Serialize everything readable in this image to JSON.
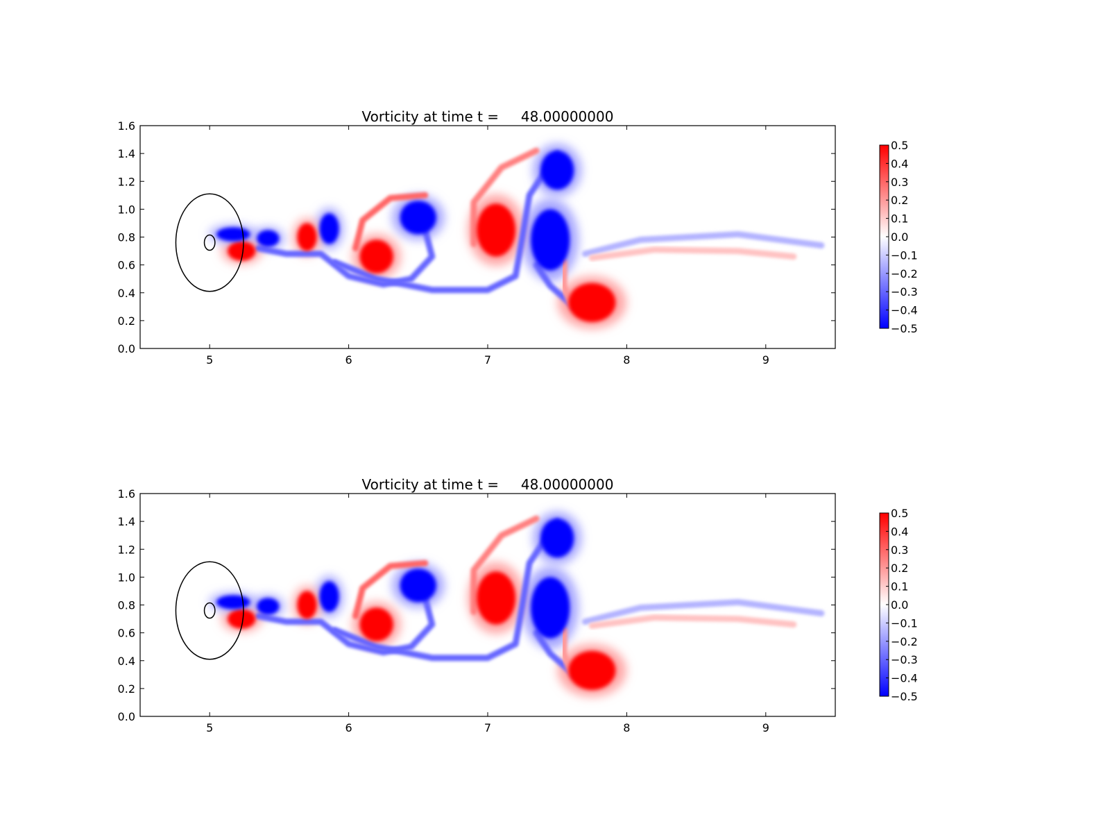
{
  "colors": {
    "positive": "#ff0000",
    "negative": "#0000ff",
    "zero": "#ffffff"
  },
  "chart_data": [
    {
      "type": "heatmap",
      "title": "Vorticity at time t =     48.00000000",
      "xlim": [
        4.5,
        9.5
      ],
      "ylim": [
        0.0,
        1.6
      ],
      "xticks": [
        "5",
        "6",
        "7",
        "8",
        "9"
      ],
      "yticks": [
        "0.0",
        "0.2",
        "0.4",
        "0.6",
        "0.8",
        "1.0",
        "1.2",
        "1.4",
        "1.6"
      ],
      "colormap": "bwr",
      "clim": [
        -0.5,
        0.5
      ],
      "colorbar_ticks": [
        "0.5",
        "0.4",
        "0.3",
        "0.2",
        "0.1",
        "0.0",
        "−0.1",
        "−0.2",
        "−0.3",
        "−0.4",
        "−0.5"
      ],
      "circles": [
        {
          "cx": 5.0,
          "cy": 0.76,
          "r": 0.35
        },
        {
          "cx": 5.0,
          "cy": 0.76,
          "r": 0.055
        }
      ],
      "vortices": [
        {
          "x": 7.5,
          "y": 1.28,
          "rx": 0.12,
          "ry": 0.14,
          "sign": -1,
          "value": -0.5
        },
        {
          "x": 7.45,
          "y": 0.78,
          "rx": 0.14,
          "ry": 0.22,
          "sign": -1,
          "value": -0.5
        },
        {
          "x": 7.75,
          "y": 0.33,
          "rx": 0.17,
          "ry": 0.14,
          "sign": 1,
          "value": 0.5
        },
        {
          "x": 7.06,
          "y": 0.85,
          "rx": 0.14,
          "ry": 0.19,
          "sign": 1,
          "value": 0.5
        },
        {
          "x": 6.5,
          "y": 0.94,
          "rx": 0.13,
          "ry": 0.12,
          "sign": -1,
          "value": -0.5
        },
        {
          "x": 6.2,
          "y": 0.66,
          "rx": 0.12,
          "ry": 0.12,
          "sign": 1,
          "value": 0.5
        },
        {
          "x": 5.86,
          "y": 0.86,
          "rx": 0.07,
          "ry": 0.11,
          "sign": -1,
          "value": -0.5
        },
        {
          "x": 5.7,
          "y": 0.8,
          "rx": 0.07,
          "ry": 0.1,
          "sign": 1,
          "value": 0.5
        },
        {
          "x": 5.42,
          "y": 0.79,
          "rx": 0.08,
          "ry": 0.06,
          "sign": -1,
          "value": -0.5
        },
        {
          "x": 5.23,
          "y": 0.7,
          "rx": 0.1,
          "ry": 0.07,
          "sign": 1,
          "value": 0.5
        },
        {
          "x": 5.17,
          "y": 0.82,
          "rx": 0.12,
          "ry": 0.05,
          "sign": -1,
          "value": -0.5
        }
      ],
      "filaments": [
        {
          "sign": -1,
          "value": -0.3,
          "points": [
            [
              5.35,
              0.72
            ],
            [
              5.55,
              0.68
            ],
            [
              5.8,
              0.68
            ],
            [
              6.0,
              0.52
            ],
            [
              6.25,
              0.46
            ],
            [
              6.45,
              0.5
            ],
            [
              6.6,
              0.66
            ],
            [
              6.55,
              0.85
            ]
          ]
        },
        {
          "sign": -1,
          "value": -0.3,
          "points": [
            [
              5.9,
              0.62
            ],
            [
              6.2,
              0.5
            ],
            [
              6.6,
              0.42
            ],
            [
              7.0,
              0.42
            ],
            [
              7.2,
              0.52
            ],
            [
              7.25,
              0.8
            ],
            [
              7.3,
              1.1
            ],
            [
              7.5,
              1.4
            ]
          ]
        },
        {
          "sign": 1,
          "value": 0.3,
          "points": [
            [
              6.05,
              0.72
            ],
            [
              6.1,
              0.92
            ],
            [
              6.3,
              1.08
            ],
            [
              6.55,
              1.1
            ]
          ]
        },
        {
          "sign": 1,
          "value": 0.25,
          "points": [
            [
              6.9,
              0.75
            ],
            [
              6.9,
              1.05
            ],
            [
              7.1,
              1.3
            ],
            [
              7.35,
              1.42
            ]
          ]
        },
        {
          "sign": -1,
          "value": -0.15,
          "points": [
            [
              7.7,
              0.68
            ],
            [
              8.1,
              0.78
            ],
            [
              8.8,
              0.82
            ],
            [
              9.4,
              0.74
            ]
          ]
        },
        {
          "sign": 1,
          "value": 0.12,
          "points": [
            [
              7.75,
              0.65
            ],
            [
              8.2,
              0.71
            ],
            [
              8.8,
              0.7
            ],
            [
              9.2,
              0.66
            ]
          ]
        },
        {
          "sign": -1,
          "value": -0.3,
          "points": [
            [
              7.35,
              0.6
            ],
            [
              7.45,
              0.45
            ],
            [
              7.62,
              0.3
            ]
          ]
        },
        {
          "sign": 1,
          "value": 0.2,
          "points": [
            [
              7.55,
              0.62
            ],
            [
              7.55,
              0.45
            ],
            [
              7.6,
              0.3
            ]
          ]
        }
      ]
    },
    {
      "type": "heatmap",
      "title": "Vorticity at time t =     48.00000000",
      "xlim": [
        4.5,
        9.5
      ],
      "ylim": [
        0.0,
        1.6
      ],
      "xticks": [
        "5",
        "6",
        "7",
        "8",
        "9"
      ],
      "yticks": [
        "0.0",
        "0.2",
        "0.4",
        "0.6",
        "0.8",
        "1.0",
        "1.2",
        "1.4",
        "1.6"
      ],
      "colormap": "bwr",
      "clim": [
        -0.5,
        0.5
      ],
      "colorbar_ticks": [
        "0.5",
        "0.4",
        "0.3",
        "0.2",
        "0.1",
        "0.0",
        "−0.1",
        "−0.2",
        "−0.3",
        "−0.4",
        "−0.5"
      ],
      "circles": [
        {
          "cx": 5.0,
          "cy": 0.76,
          "r": 0.35
        },
        {
          "cx": 5.0,
          "cy": 0.76,
          "r": 0.055
        }
      ],
      "vortices": [
        {
          "x": 7.5,
          "y": 1.28,
          "rx": 0.12,
          "ry": 0.14,
          "sign": -1,
          "value": -0.5
        },
        {
          "x": 7.45,
          "y": 0.78,
          "rx": 0.14,
          "ry": 0.22,
          "sign": -1,
          "value": -0.5
        },
        {
          "x": 7.75,
          "y": 0.33,
          "rx": 0.17,
          "ry": 0.14,
          "sign": 1,
          "value": 0.5
        },
        {
          "x": 7.06,
          "y": 0.85,
          "rx": 0.14,
          "ry": 0.19,
          "sign": 1,
          "value": 0.5
        },
        {
          "x": 6.5,
          "y": 0.94,
          "rx": 0.13,
          "ry": 0.12,
          "sign": -1,
          "value": -0.5
        },
        {
          "x": 6.2,
          "y": 0.66,
          "rx": 0.12,
          "ry": 0.12,
          "sign": 1,
          "value": 0.5
        },
        {
          "x": 5.86,
          "y": 0.86,
          "rx": 0.07,
          "ry": 0.11,
          "sign": -1,
          "value": -0.5
        },
        {
          "x": 5.7,
          "y": 0.8,
          "rx": 0.07,
          "ry": 0.1,
          "sign": 1,
          "value": 0.5
        },
        {
          "x": 5.42,
          "y": 0.79,
          "rx": 0.08,
          "ry": 0.06,
          "sign": -1,
          "value": -0.5
        },
        {
          "x": 5.23,
          "y": 0.7,
          "rx": 0.1,
          "ry": 0.07,
          "sign": 1,
          "value": 0.5
        },
        {
          "x": 5.17,
          "y": 0.82,
          "rx": 0.12,
          "ry": 0.05,
          "sign": -1,
          "value": -0.5
        }
      ],
      "filaments": [
        {
          "sign": -1,
          "value": -0.3,
          "points": [
            [
              5.35,
              0.72
            ],
            [
              5.55,
              0.68
            ],
            [
              5.8,
              0.68
            ],
            [
              6.0,
              0.52
            ],
            [
              6.25,
              0.46
            ],
            [
              6.45,
              0.5
            ],
            [
              6.6,
              0.66
            ],
            [
              6.55,
              0.85
            ]
          ]
        },
        {
          "sign": -1,
          "value": -0.3,
          "points": [
            [
              5.9,
              0.62
            ],
            [
              6.2,
              0.5
            ],
            [
              6.6,
              0.42
            ],
            [
              7.0,
              0.42
            ],
            [
              7.2,
              0.52
            ],
            [
              7.25,
              0.8
            ],
            [
              7.3,
              1.1
            ],
            [
              7.5,
              1.4
            ]
          ]
        },
        {
          "sign": 1,
          "value": 0.3,
          "points": [
            [
              6.05,
              0.72
            ],
            [
              6.1,
              0.92
            ],
            [
              6.3,
              1.08
            ],
            [
              6.55,
              1.1
            ]
          ]
        },
        {
          "sign": 1,
          "value": 0.25,
          "points": [
            [
              6.9,
              0.75
            ],
            [
              6.9,
              1.05
            ],
            [
              7.1,
              1.3
            ],
            [
              7.35,
              1.42
            ]
          ]
        },
        {
          "sign": -1,
          "value": -0.15,
          "points": [
            [
              7.7,
              0.68
            ],
            [
              8.1,
              0.78
            ],
            [
              8.8,
              0.82
            ],
            [
              9.4,
              0.74
            ]
          ]
        },
        {
          "sign": 1,
          "value": 0.12,
          "points": [
            [
              7.75,
              0.65
            ],
            [
              8.2,
              0.71
            ],
            [
              8.8,
              0.7
            ],
            [
              9.2,
              0.66
            ]
          ]
        },
        {
          "sign": -1,
          "value": -0.3,
          "points": [
            [
              7.35,
              0.6
            ],
            [
              7.45,
              0.45
            ],
            [
              7.62,
              0.3
            ]
          ]
        },
        {
          "sign": 1,
          "value": 0.2,
          "points": [
            [
              7.55,
              0.62
            ],
            [
              7.55,
              0.45
            ],
            [
              7.6,
              0.3
            ]
          ]
        }
      ]
    }
  ]
}
